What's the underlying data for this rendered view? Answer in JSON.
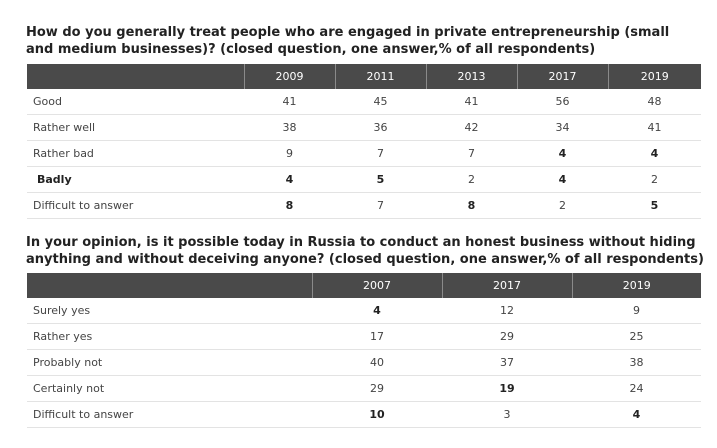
{
  "q1": {
    "title_line1": "How do you generally treat people who are engaged in private entrepreneurship (small",
    "title_line2": "and medium businesses)? (closed question, one answer,% of all respondents)",
    "headers": [
      "",
      "2009",
      "2011",
      "2013",
      "2017",
      "2019"
    ],
    "rows": [
      {
        "label": "Good",
        "values": [
          "41",
          "45",
          "41",
          "56",
          "48"
        ]
      },
      {
        "label": "Rather well",
        "values": [
          "38",
          "36",
          "42",
          "34",
          "41"
        ]
      },
      {
        "label": "Rather bad",
        "values": [
          "9",
          "7",
          "7",
          "4",
          "4"
        ]
      },
      {
        "label": "Badly",
        "values": [
          "4",
          "5",
          "2",
          "4",
          "2"
        ]
      },
      {
        "label": "Difficult to answer",
        "values": [
          "8",
          "7",
          "8",
          "2",
          "5"
        ]
      }
    ]
  },
  "q2": {
    "title_line1": "In your opinion, is it possible today in Russia to conduct an honest business without hiding",
    "title_line2": "anything and without deceiving anyone? (closed question, one answer,% of all respondents)",
    "headers": [
      "",
      "2007",
      "2017",
      "2019"
    ],
    "rows": [
      {
        "label": "Surely yes",
        "values": [
          "4",
          "12",
          "9"
        ]
      },
      {
        "label": "Rather yes",
        "values": [
          "17",
          "29",
          "25"
        ]
      },
      {
        "label": "Probably not",
        "values": [
          "40",
          "37",
          "38"
        ]
      },
      {
        "label": "Certainly not",
        "values": [
          "29",
          "19",
          "24"
        ]
      },
      {
        "label": "Difficult to answer",
        "values": [
          "10",
          "3",
          "4"
        ]
      }
    ]
  }
}
